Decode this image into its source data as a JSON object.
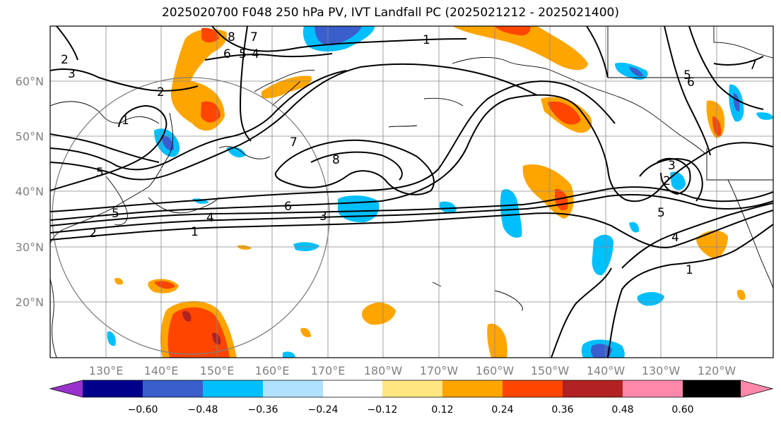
{
  "title": "2025020700 F048 250 hPa PV, IVT Landfall PC (2025021212 - 2025021400)",
  "lat_labels": [
    "60°N",
    "50°N",
    "40°N",
    "30°N",
    "20°N"
  ],
  "lon_labels": [
    "130°E",
    "140°E",
    "150°E",
    "160°E",
    "170°E",
    "180°W",
    "170°W",
    "160°W",
    "150°W",
    "140°W",
    "130°W",
    "120°W"
  ],
  "colorbar": {
    "ticks": [
      "−0.60",
      "−0.48",
      "−0.36",
      "−0.24",
      "−0.12",
      "0.12",
      "0.24",
      "0.36",
      "0.48",
      "0.60"
    ],
    "colors": [
      "#9932cc",
      "#00008b",
      "#3a5fcd",
      "#00bfff",
      "#b0e2ff",
      "#ffffff",
      "#ffe680",
      "#ffa500",
      "#ff4500",
      "#b22222",
      "#ff88aa"
    ]
  },
  "contour_labels": [
    "8",
    "7",
    "6",
    "5",
    "4",
    "2",
    "3",
    "2",
    "1",
    "1",
    "5",
    "5",
    "2",
    "7",
    "8",
    "6",
    "3",
    "4",
    "1",
    "3",
    "2",
    "5",
    "4",
    "1",
    "5",
    "6",
    "7"
  ]
}
